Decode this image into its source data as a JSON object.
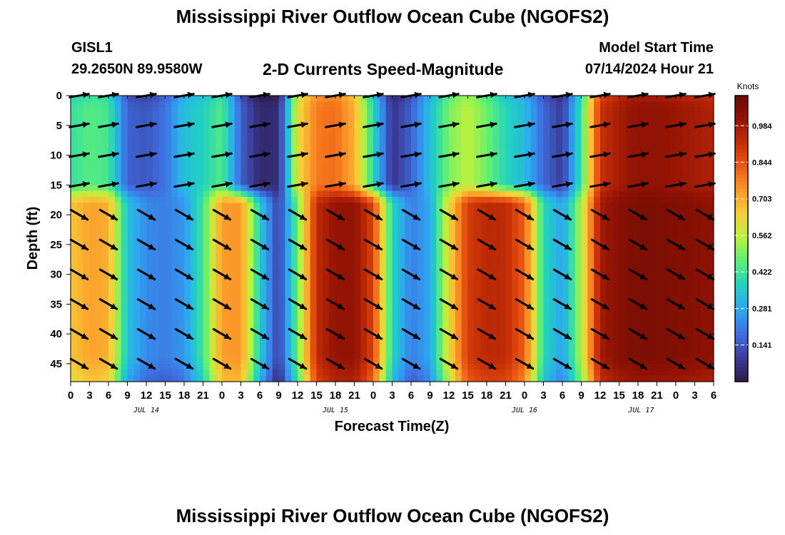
{
  "page": {
    "title": "Mississippi River Outflow Ocean Cube (NGOFS2)",
    "footer_title": "Mississippi River Outflow Ocean Cube (NGOFS2)",
    "station": "GISL1",
    "coordinates": "29.2650N  89.9580W",
    "subtitle": "2-D Currents Speed-Magnitude",
    "model_start_label": "Model Start Time",
    "model_start_value": "07/14/2024 Hour 21"
  },
  "chart_data": {
    "type": "heatmap",
    "title": "2-D Currents Speed-Magnitude",
    "xlabel": "Forecast Time(Z)",
    "ylabel": "Depth (ft)",
    "x_ticks": [
      "0",
      "3",
      "6",
      "9",
      "12",
      "15",
      "18",
      "21",
      "0",
      "3",
      "6",
      "9",
      "12",
      "15",
      "18",
      "21",
      "0",
      "3",
      "6",
      "9",
      "12",
      "15",
      "18",
      "21",
      "0",
      "3",
      "6",
      "9",
      "12",
      "15",
      "18",
      "21",
      "0",
      "3",
      "6"
    ],
    "date_labels": [
      {
        "label": "JUL 14",
        "hour": 12
      },
      {
        "label": "JUL 15",
        "hour": 42
      },
      {
        "label": "JUL 16",
        "hour": 72
      },
      {
        "label": "JUL 17",
        "hour": 90.5
      }
    ],
    "xlim_hours": [
      0,
      102
    ],
    "y_ticks": [
      0,
      5,
      10,
      15,
      20,
      25,
      30,
      35,
      40,
      45
    ],
    "ylim_ft": [
      0,
      48
    ],
    "colorbar": {
      "label": "Knots",
      "ticks": [
        0.141,
        0.281,
        0.422,
        0.562,
        0.703,
        0.844,
        0.984
      ],
      "range": [
        0.0,
        1.1
      ],
      "colors": [
        "#2e1a4a",
        "#3b3d9a",
        "#3f6fe0",
        "#2fa6f2",
        "#20d0c4",
        "#58ee7a",
        "#b6f23e",
        "#f5d038",
        "#fd9a2a",
        "#ee5b14",
        "#c72f06",
        "#951404",
        "#6a0a02"
      ]
    },
    "speed_profile": {
      "hours": [
        0,
        3,
        6,
        9,
        12,
        15,
        18,
        21,
        24,
        27,
        30,
        33,
        36,
        39,
        42,
        45,
        48,
        51,
        54,
        57,
        60,
        63,
        66,
        69,
        72,
        75,
        78,
        81,
        84,
        87,
        90,
        93,
        96,
        99,
        102
      ],
      "upper_layer_knots": [
        0.41,
        0.45,
        0.43,
        0.16,
        0.14,
        0.19,
        0.33,
        0.37,
        0.45,
        0.16,
        0.04,
        0.05,
        0.62,
        0.78,
        0.8,
        0.7,
        0.38,
        0.07,
        0.16,
        0.33,
        0.49,
        0.56,
        0.48,
        0.38,
        0.32,
        0.17,
        0.09,
        0.42,
        0.91,
        0.98,
        1.02,
        1.02,
        1.0,
        0.98,
        0.96
      ],
      "lower_layer_knots": [
        0.66,
        0.72,
        0.7,
        0.33,
        0.23,
        0.21,
        0.25,
        0.43,
        0.73,
        0.74,
        0.36,
        0.09,
        0.48,
        0.93,
        1.01,
        1.02,
        0.87,
        0.38,
        0.21,
        0.28,
        0.62,
        0.89,
        0.94,
        0.93,
        0.82,
        0.39,
        0.27,
        0.55,
        0.98,
        1.04,
        1.06,
        1.06,
        1.05,
        1.04,
        1.02
      ],
      "layer_break_ft": 16.5
    },
    "vectors": {
      "hours": [
        0,
        6,
        12,
        18,
        24,
        30,
        36,
        42,
        48,
        54,
        60,
        66,
        72,
        78,
        84,
        90,
        96,
        102
      ],
      "depths_ft": [
        0,
        5,
        10,
        15,
        20,
        25,
        30,
        35,
        40,
        45
      ],
      "upper_direction_deg": [
        80,
        80,
        80,
        80,
        80,
        80,
        80,
        80,
        80,
        80,
        80,
        80,
        80,
        80,
        80,
        80,
        80,
        80
      ],
      "lower_direction_deg": [
        120,
        120,
        120,
        120,
        120,
        120,
        120,
        120,
        120,
        120,
        120,
        120,
        120,
        120,
        120,
        120,
        120,
        120
      ]
    }
  }
}
